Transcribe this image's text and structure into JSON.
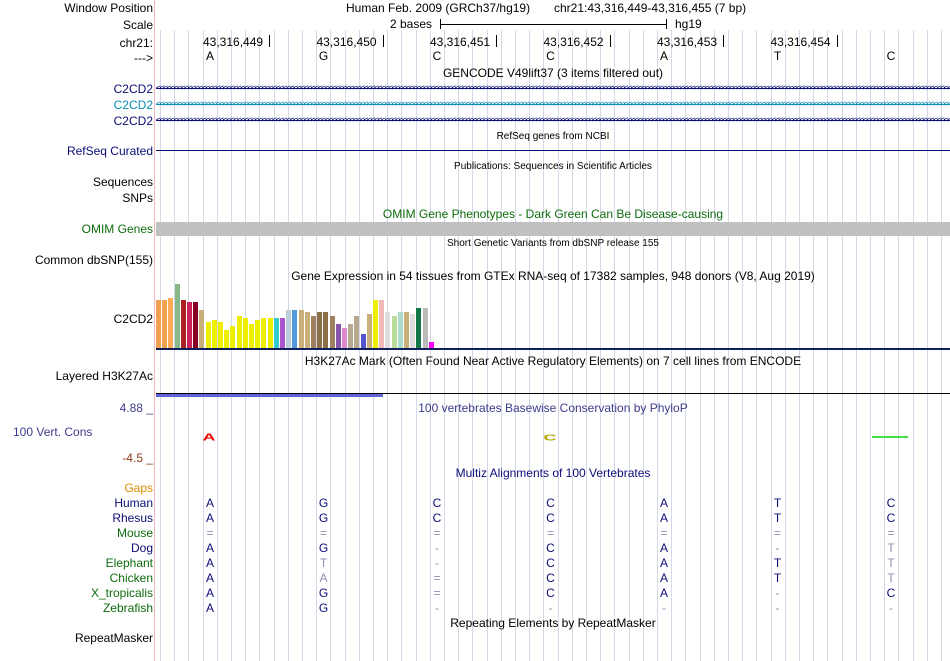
{
  "header": {
    "window_position_label": "Window Position",
    "scale_label": "Scale",
    "chrom_label": "chr21:",
    "arrow_label": "--->",
    "assembly_text": "Human Feb. 2009 (GRCh37/hg19)",
    "position_text": "chr21:43,316,449-43,316,455 (7 bp)",
    "scale_text": "2 bases",
    "scale_assembly": "hg19"
  },
  "ruler": {
    "positions": [
      "43,316,449",
      "43,316,450",
      "43,316,451",
      "43,316,452",
      "43,316,453",
      "43,316,454"
    ],
    "bases": [
      "A",
      "G",
      "C",
      "C",
      "A",
      "T",
      "C"
    ]
  },
  "tracks": {
    "gencode": {
      "title": "GENCODE V49lift37 (3 items filtered out)",
      "items": [
        {
          "label": "C2CD2",
          "color": "#0c0c78"
        },
        {
          "label": "C2CD2",
          "color": "#0c8cb4"
        },
        {
          "label": "C2CD2",
          "color": "#0c0c78"
        }
      ]
    },
    "refseq": {
      "title": "RefSeq genes from NCBI",
      "label": "RefSeq Curated",
      "color": "#0c0c78"
    },
    "publications": {
      "title": "Publications: Sequences in Scientific Articles",
      "label1": "Sequences",
      "label2": "SNPs"
    },
    "omim": {
      "title": "OMIM Gene Phenotypes - Dark Green Can Be Disease-causing",
      "label": "OMIM Genes",
      "color": "#0c6c0c"
    },
    "dbsnp": {
      "title": "Short Genetic Variants from dbSNP release 155",
      "label": "Common dbSNP(155)"
    },
    "gtex": {
      "title": "Gene Expression in 54 tissues from GTEx RNA-seq of 17382 samples, 948 donors (V8, Aug 2019)",
      "label": "C2CD2",
      "bars": [
        {
          "v": 48,
          "c": "#f0a050"
        },
        {
          "v": 48,
          "c": "#f0a050"
        },
        {
          "v": 50,
          "c": "#ffaa55"
        },
        {
          "v": 64,
          "c": "#88b888"
        },
        {
          "v": 48,
          "c": "#aa2222"
        },
        {
          "v": 46,
          "c": "#cc2255"
        },
        {
          "v": 46,
          "c": "#880022"
        },
        {
          "v": 38,
          "c": "#c8b078"
        },
        {
          "v": 26,
          "c": "#eeee00"
        },
        {
          "v": 28,
          "c": "#eeee00"
        },
        {
          "v": 26,
          "c": "#eeee00"
        },
        {
          "v": 18,
          "c": "#eeee00"
        },
        {
          "v": 22,
          "c": "#eeee00"
        },
        {
          "v": 32,
          "c": "#eeee00"
        },
        {
          "v": 30,
          "c": "#eeee00"
        },
        {
          "v": 24,
          "c": "#eeee00"
        },
        {
          "v": 28,
          "c": "#eeee00"
        },
        {
          "v": 30,
          "c": "#eeee00"
        },
        {
          "v": 30,
          "c": "#eeee00"
        },
        {
          "v": 30,
          "c": "#33cccc"
        },
        {
          "v": 30,
          "c": "#aa55cc"
        },
        {
          "v": 38,
          "c": "#bbccdd"
        },
        {
          "v": 38,
          "c": "#5599dd"
        },
        {
          "v": 38,
          "c": "#c8b078"
        },
        {
          "v": 36,
          "c": "#c8b078"
        },
        {
          "v": 32,
          "c": "#a08060"
        },
        {
          "v": 36,
          "c": "#8b6f47"
        },
        {
          "v": 36,
          "c": "#8b6f47"
        },
        {
          "v": 32,
          "c": "#a08060"
        },
        {
          "v": 24,
          "c": "#8855aa"
        },
        {
          "v": 20,
          "c": "#dd88cc"
        },
        {
          "v": 24,
          "c": "#b8a890"
        },
        {
          "v": 32,
          "c": "#b8a890"
        },
        {
          "v": 14,
          "c": "#5555cc"
        },
        {
          "v": 34,
          "c": "#c8b078"
        },
        {
          "v": 48,
          "c": "#eeee00"
        },
        {
          "v": 48,
          "c": "#f0b8b8"
        },
        {
          "v": 36,
          "c": "#dddddd"
        },
        {
          "v": 32,
          "c": "#bbdd99"
        },
        {
          "v": 36,
          "c": "#aaddcc"
        },
        {
          "v": 36,
          "c": "#c8b078"
        },
        {
          "v": 34,
          "c": "#dddddd"
        },
        {
          "v": 40,
          "c": "#117744"
        },
        {
          "v": 40,
          "c": "#bbbbbb"
        },
        {
          "v": 6,
          "c": "#ff00ff"
        }
      ]
    },
    "h3k27ac": {
      "title": "H3K27Ac Mark (Often Found Near Active Regulatory Elements) on 7 cell lines from ENCODE",
      "label": "Layered H3K27Ac"
    },
    "conservation": {
      "title": "100 vertebrates Basewise Conservation by PhyloP",
      "label": "100 Vert. Cons",
      "max_label": "4.88 _",
      "min_label": "-4.5 _",
      "title_color": "#3c3c8c",
      "min_color": "#8c3c14"
    },
    "multiz": {
      "title": "Multiz Alignments of 100 Vertebrates",
      "gaps_label": "Gaps",
      "species": [
        {
          "name": "Human",
          "color": "#0c0c78",
          "bases": [
            "A",
            "G",
            "C",
            "C",
            "A",
            "T",
            "C"
          ]
        },
        {
          "name": "Rhesus",
          "color": "#0c0c78",
          "bases": [
            "A",
            "G",
            "C",
            "C",
            "A",
            "T",
            "C"
          ]
        },
        {
          "name": "Mouse",
          "color": "#0c6c0c",
          "bases": [
            "=",
            "=",
            "=",
            "=",
            "=",
            "=",
            "="
          ]
        },
        {
          "name": "Dog",
          "color": "#0c0c78",
          "bases": [
            "A",
            "G",
            "-",
            "C",
            "A",
            "-",
            "T"
          ]
        },
        {
          "name": "Elephant",
          "color": "#0c6c0c",
          "bases": [
            "A",
            "T",
            "-",
            "C",
            "A",
            "T",
            "T"
          ]
        },
        {
          "name": "Chicken",
          "color": "#0c6c0c",
          "bases": [
            "A",
            "A",
            "=",
            "C",
            "A",
            "T",
            "T"
          ]
        },
        {
          "name": "X_tropicalis",
          "color": "#0c6c0c",
          "bases": [
            "A",
            "G",
            "=",
            "C",
            "A",
            "-",
            "C"
          ]
        },
        {
          "name": "Zebrafish",
          "color": "#0c6c0c",
          "bases": [
            "A",
            "G",
            "-",
            "-",
            "-",
            "-",
            "-"
          ]
        }
      ]
    },
    "repeatmasker": {
      "title": "Repeating Elements by RepeatMasker",
      "label": "RepeatMasker"
    }
  }
}
